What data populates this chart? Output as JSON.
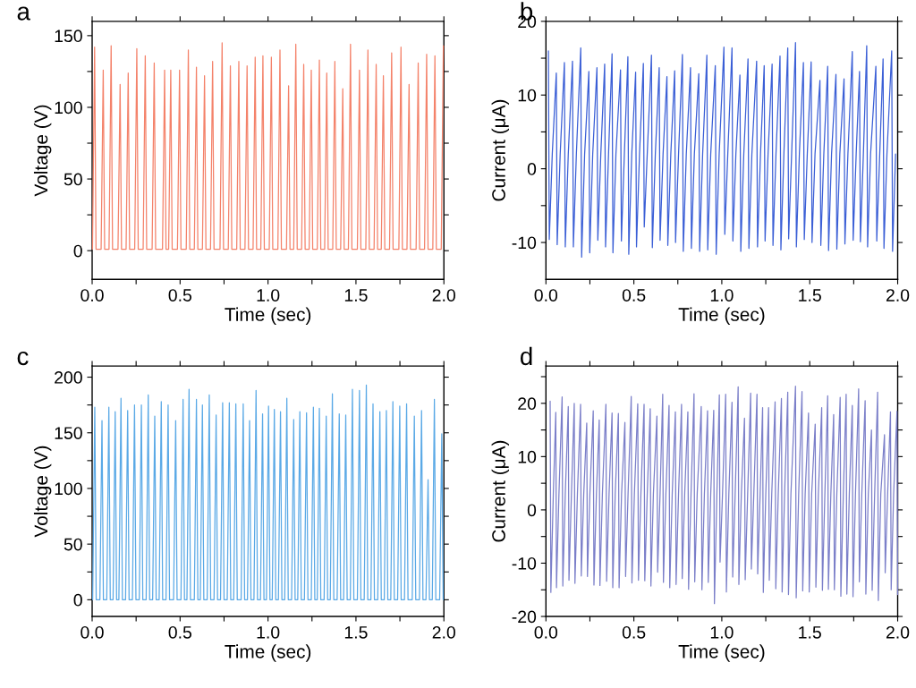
{
  "chart_data": [
    {
      "type": "line",
      "title": "a",
      "xlabel": "Time (sec)",
      "ylabel": "Voltage (V)",
      "xlim": [
        0,
        2.0
      ],
      "ylim": [
        -20,
        160
      ],
      "xticks": [
        {
          "value": 0,
          "label": "0.0"
        },
        {
          "value": 0.25,
          "label": null
        },
        {
          "value": 0.5,
          "label": "0.5"
        },
        {
          "value": 0.75,
          "label": null
        },
        {
          "value": 1.0,
          "label": "1.0"
        },
        {
          "value": 1.25,
          "label": null
        },
        {
          "value": 1.5,
          "label": "1.5"
        },
        {
          "value": 1.75,
          "label": null
        },
        {
          "value": 2.0,
          "label": "2.0"
        }
      ],
      "yticks": [
        {
          "value": 0,
          "label": "0"
        },
        {
          "value": 25,
          "label": null
        },
        {
          "value": 50,
          "label": "50"
        },
        {
          "value": 75,
          "label": null
        },
        {
          "value": 100,
          "label": "100"
        },
        {
          "value": 125,
          "label": null
        },
        {
          "value": 150,
          "label": "150"
        }
      ],
      "series": [
        {
          "color": "#f4826a",
          "x": [
            0.002,
            0.014,
            0.022,
            0.051,
            0.063,
            0.071,
            0.096,
            0.108,
            0.116,
            0.147,
            0.159,
            0.167,
            0.193,
            0.205,
            0.213,
            0.242,
            0.254,
            0.262,
            0.29,
            0.302,
            0.31,
            0.341,
            0.353,
            0.361,
            0.4,
            0.412,
            0.42,
            0.435,
            0.447,
            0.455,
            0.485,
            0.497,
            0.505,
            0.535,
            0.547,
            0.555,
            0.581,
            0.593,
            0.601,
            0.627,
            0.639,
            0.647,
            0.673,
            0.685,
            0.693,
            0.727,
            0.739,
            0.747,
            0.774,
            0.786,
            0.794,
            0.822,
            0.834,
            0.842,
            0.869,
            0.881,
            0.889,
            0.915,
            0.927,
            0.935,
            0.959,
            0.971,
            0.979,
            1.007,
            1.019,
            1.027,
            1.056,
            1.068,
            1.076,
            1.105,
            1.117,
            1.125,
            1.146,
            1.158,
            1.166,
            1.191,
            1.203,
            1.211,
            1.234,
            1.246,
            1.254,
            1.28,
            1.292,
            1.3,
            1.322,
            1.334,
            1.342,
            1.368,
            1.38,
            1.388,
            1.413,
            1.425,
            1.433,
            1.457,
            1.469,
            1.477,
            1.508,
            1.52,
            1.528,
            1.556,
            1.568,
            1.576,
            1.603,
            1.615,
            1.623,
            1.644,
            1.656,
            1.664,
            1.691,
            1.703,
            1.711,
            1.744,
            1.756,
            1.764,
            1.79,
            1.802,
            1.81,
            1.842,
            1.854,
            1.862,
            1.89,
            1.902,
            1.91,
            1.937,
            1.949,
            1.957,
            1.985,
            1.997
          ],
          "values": [
            1,
            142,
            1,
            1,
            126,
            1,
            1,
            143,
            1,
            1,
            116,
            1,
            1,
            124,
            1,
            1,
            141,
            1,
            1,
            136,
            1,
            1,
            131,
            1,
            1,
            126,
            1,
            1,
            126,
            1,
            1,
            126,
            1,
            1,
            140,
            1,
            1,
            128,
            1,
            1,
            122,
            1,
            1,
            132,
            1,
            1,
            145,
            1,
            1,
            129,
            1,
            1,
            132,
            1,
            1,
            129,
            1,
            1,
            135,
            1,
            1,
            136,
            1,
            1,
            135,
            1,
            1,
            140,
            1,
            1,
            115,
            1,
            1,
            144,
            1,
            1,
            130,
            1,
            1,
            126,
            1,
            1,
            133,
            1,
            1,
            124,
            1,
            1,
            132,
            1,
            1,
            113,
            1,
            1,
            144,
            1,
            1,
            126,
            1,
            1,
            140,
            1,
            1,
            130,
            1,
            1,
            122,
            1,
            1,
            138,
            1,
            1,
            142,
            1,
            1,
            116,
            1,
            1,
            131,
            1,
            1,
            137,
            1,
            1,
            136,
            1,
            1,
            143
          ]
        }
      ]
    },
    {
      "type": "line",
      "title": "b",
      "xlabel": "Time (sec)",
      "ylabel": "Current (μA)",
      "xlim": [
        0,
        2.0
      ],
      "ylim": [
        -15,
        20
      ],
      "xticks": [
        {
          "value": 0,
          "label": "0.0"
        },
        {
          "value": 0.25,
          "label": null
        },
        {
          "value": 0.5,
          "label": "0.5"
        },
        {
          "value": 0.75,
          "label": null
        },
        {
          "value": 1.0,
          "label": "1.0"
        },
        {
          "value": 1.25,
          "label": null
        },
        {
          "value": 1.5,
          "label": "1.5"
        },
        {
          "value": 1.75,
          "label": null
        },
        {
          "value": 2.0,
          "label": "2.0"
        }
      ],
      "yticks": [
        {
          "value": -10,
          "label": "-10"
        },
        {
          "value": -5,
          "label": null
        },
        {
          "value": 0,
          "label": "0"
        },
        {
          "value": 5,
          "label": null
        },
        {
          "value": 10,
          "label": "10"
        },
        {
          "value": 15,
          "label": null
        },
        {
          "value": 20,
          "label": "20"
        }
      ],
      "series": [
        {
          "color": "#3b5fd6",
          "x": [
            0.014,
            0.019,
            0.036,
            0.059,
            0.064,
            0.081,
            0.105,
            0.11,
            0.127,
            0.151,
            0.156,
            0.173,
            0.198,
            0.203,
            0.22,
            0.244,
            0.249,
            0.266,
            0.29,
            0.295,
            0.312,
            0.334,
            0.339,
            0.356,
            0.376,
            0.381,
            0.398,
            0.424,
            0.429,
            0.446,
            0.466,
            0.471,
            0.488,
            0.51,
            0.515,
            0.532,
            0.554,
            0.559,
            0.576,
            0.6,
            0.605,
            0.622,
            0.644,
            0.649,
            0.666,
            0.688,
            0.693,
            0.71,
            0.732,
            0.737,
            0.754,
            0.776,
            0.781,
            0.798,
            0.822,
            0.827,
            0.844,
            0.869,
            0.874,
            0.891,
            0.915,
            0.92,
            0.937,
            0.963,
            0.968,
            0.985,
            1.012,
            1.017,
            1.034,
            1.058,
            1.063,
            1.08,
            1.103,
            1.108,
            1.125,
            1.149,
            1.154,
            1.171,
            1.198,
            1.203,
            1.22,
            1.241,
            1.246,
            1.263,
            1.286,
            1.291,
            1.308,
            1.331,
            1.336,
            1.353,
            1.375,
            1.38,
            1.397,
            1.419,
            1.424,
            1.441,
            1.464,
            1.469,
            1.486,
            1.508,
            1.513,
            1.53,
            1.558,
            1.563,
            1.58,
            1.602,
            1.607,
            1.624,
            1.649,
            1.654,
            1.671,
            1.695,
            1.7,
            1.717,
            1.742,
            1.747,
            1.764,
            1.783,
            1.788,
            1.805,
            1.824,
            1.829,
            1.846,
            1.876,
            1.881,
            1.898,
            1.917,
            1.922,
            1.939,
            1.966,
            1.971,
            1.988
          ],
          "values": [
            16.0,
            -9.6,
            2,
            13.0,
            -10.3,
            2,
            14.4,
            -10.6,
            2,
            14.6,
            -10.6,
            2,
            16.4,
            -12.0,
            2,
            13.2,
            -11.4,
            2,
            13.7,
            -9.7,
            2,
            14.2,
            -10.6,
            2,
            15.6,
            -11.4,
            2,
            13.4,
            -9.8,
            2,
            15.2,
            -11.6,
            2,
            13.1,
            -10.6,
            2,
            14.3,
            -7.9,
            2,
            15.4,
            -10.7,
            2,
            13.7,
            -9.7,
            2,
            12.5,
            -10.4,
            2,
            13.3,
            -10.0,
            2,
            15.5,
            -11.2,
            2,
            13.7,
            -10.8,
            2,
            12.9,
            -11.2,
            2,
            15.4,
            -11.0,
            2,
            14.0,
            -11.6,
            2,
            16.5,
            -8.9,
            2,
            16.4,
            -9.8,
            2,
            12.7,
            -11.2,
            2,
            14.9,
            -10.8,
            2,
            14.6,
            -10.6,
            2,
            14.0,
            -9.8,
            2,
            14.2,
            -10.4,
            2,
            15.3,
            -11.0,
            2,
            16.4,
            -9.5,
            2,
            17.1,
            -10.6,
            2,
            14.4,
            -9.6,
            2,
            14.5,
            -10.0,
            2,
            12.0,
            -10.4,
            2,
            13.9,
            -11.1,
            2,
            12.8,
            -10.9,
            2,
            12.2,
            -10.2,
            2,
            15.9,
            -9.7,
            2,
            13.2,
            -9.9,
            2,
            16.7,
            -10.6,
            2,
            13.9,
            -9.8,
            2,
            14.9,
            -10.8,
            2,
            16.0,
            -11.2,
            2
          ]
        }
      ]
    },
    {
      "type": "line",
      "title": "c",
      "xlabel": "Time (sec)",
      "ylabel": "Voltage (V)",
      "xlim": [
        0,
        2.0
      ],
      "ylim": [
        -15,
        210
      ],
      "xticks": [
        {
          "value": 0,
          "label": "0.0"
        },
        {
          "value": 0.25,
          "label": null
        },
        {
          "value": 0.5,
          "label": "0.5"
        },
        {
          "value": 0.75,
          "label": null
        },
        {
          "value": 1.0,
          "label": "1.0"
        },
        {
          "value": 1.25,
          "label": null
        },
        {
          "value": 1.5,
          "label": "1.5"
        },
        {
          "value": 1.75,
          "label": null
        },
        {
          "value": 2.0,
          "label": "2.0"
        }
      ],
      "yticks": [
        {
          "value": 0,
          "label": "0"
        },
        {
          "value": 25,
          "label": null
        },
        {
          "value": 50,
          "label": "50"
        },
        {
          "value": 75,
          "label": null
        },
        {
          "value": 100,
          "label": "100"
        },
        {
          "value": 125,
          "label": null
        },
        {
          "value": 150,
          "label": "150"
        },
        {
          "value": 175,
          "label": null
        },
        {
          "value": 200,
          "label": "200"
        }
      ],
      "series": [
        {
          "color": "#5aa9e6",
          "x": [
            0.003,
            0.015,
            0.023,
            0.044,
            0.056,
            0.064,
            0.083,
            0.095,
            0.103,
            0.119,
            0.131,
            0.139,
            0.152,
            0.164,
            0.172,
            0.19,
            0.202,
            0.21,
            0.229,
            0.241,
            0.249,
            0.268,
            0.28,
            0.288,
            0.307,
            0.319,
            0.327,
            0.344,
            0.356,
            0.364,
            0.381,
            0.393,
            0.401,
            0.42,
            0.432,
            0.44,
            0.463,
            0.475,
            0.483,
            0.505,
            0.517,
            0.525,
            0.539,
            0.551,
            0.559,
            0.581,
            0.593,
            0.601,
            0.615,
            0.627,
            0.635,
            0.654,
            0.666,
            0.674,
            0.693,
            0.705,
            0.713,
            0.73,
            0.742,
            0.75,
            0.768,
            0.78,
            0.788,
            0.805,
            0.817,
            0.825,
            0.847,
            0.859,
            0.867,
            0.883,
            0.895,
            0.903,
            0.92,
            0.932,
            0.94,
            0.957,
            0.969,
            0.977,
            0.991,
            1.003,
            1.011,
            1.024,
            1.036,
            1.044,
            1.059,
            1.071,
            1.079,
            1.095,
            1.107,
            1.115,
            1.134,
            1.146,
            1.154,
            1.169,
            1.181,
            1.189,
            1.207,
            1.219,
            1.227,
            1.246,
            1.258,
            1.266,
            1.28,
            1.292,
            1.3,
            1.319,
            1.331,
            1.339,
            1.354,
            1.366,
            1.374,
            1.393,
            1.405,
            1.413,
            1.43,
            1.442,
            1.45,
            1.468,
            1.48,
            1.488,
            1.508,
            1.52,
            1.528,
            1.547,
            1.559,
            1.567,
            1.585,
            1.597,
            1.605,
            1.624,
            1.636,
            1.644,
            1.661,
            1.673,
            1.681,
            1.698,
            1.71,
            1.718,
            1.737,
            1.749,
            1.757,
            1.776,
            1.788,
            1.796,
            1.82,
            1.832,
            1.84,
            1.861,
            1.873,
            1.881,
            1.898,
            1.91,
            1.918,
            1.934,
            1.946,
            1.954,
            1.976,
            1.988,
            1.996
          ],
          "values": [
            0,
            173,
            0,
            0,
            161,
            0,
            0,
            173,
            0,
            0,
            169,
            0,
            0,
            181,
            0,
            0,
            170,
            0,
            0,
            175,
            0,
            0,
            175,
            0,
            0,
            184,
            0,
            0,
            165,
            0,
            0,
            178,
            0,
            0,
            175,
            0,
            0,
            161,
            0,
            0,
            180,
            0,
            0,
            189,
            0,
            0,
            180,
            0,
            0,
            175,
            0,
            0,
            184,
            0,
            0,
            166,
            0,
            0,
            177,
            0,
            0,
            177,
            0,
            0,
            176,
            0,
            0,
            176,
            0,
            0,
            161,
            0,
            0,
            188,
            0,
            0,
            167,
            0,
            0,
            174,
            0,
            0,
            171,
            0,
            0,
            169,
            0,
            0,
            181,
            0,
            0,
            162,
            0,
            0,
            169,
            0,
            0,
            168,
            0,
            0,
            173,
            0,
            0,
            172,
            0,
            0,
            165,
            0,
            0,
            185,
            0,
            0,
            167,
            0,
            0,
            166,
            0,
            0,
            189,
            0,
            0,
            188,
            0,
            0,
            193,
            0,
            0,
            176,
            0,
            0,
            169,
            0,
            0,
            170,
            0,
            0,
            178,
            0,
            0,
            174,
            0,
            0,
            176,
            0,
            0,
            165,
            0,
            0,
            170,
            0,
            0,
            108,
            0,
            0,
            180,
            0,
            0,
            149,
            0
          ]
        }
      ]
    },
    {
      "type": "line",
      "title": "d",
      "xlabel": "Time (sec)",
      "ylabel": "Current (μA)",
      "xlim": [
        0,
        2.0
      ],
      "ylim": [
        -20,
        27
      ],
      "xticks": [
        {
          "value": 0,
          "label": "0.0"
        },
        {
          "value": 0.25,
          "label": null
        },
        {
          "value": 0.5,
          "label": "0.5"
        },
        {
          "value": 0.75,
          "label": null
        },
        {
          "value": 1.0,
          "label": "1.0"
        },
        {
          "value": 1.25,
          "label": null
        },
        {
          "value": 1.5,
          "label": "1.5"
        },
        {
          "value": 1.75,
          "label": null
        },
        {
          "value": 2.0,
          "label": "2.0"
        }
      ],
      "yticks": [
        {
          "value": -20,
          "label": "-20"
        },
        {
          "value": -15,
          "label": null
        },
        {
          "value": -10,
          "label": "-10"
        },
        {
          "value": -5,
          "label": null
        },
        {
          "value": 0,
          "label": "0"
        },
        {
          "value": 5,
          "label": null
        },
        {
          "value": 10,
          "label": "10"
        },
        {
          "value": 15,
          "label": null
        },
        {
          "value": 20,
          "label": "20"
        },
        {
          "value": 25,
          "label": null
        }
      ],
      "series": [
        {
          "color": "#7b7fc9",
          "x": [
            0.024,
            0.028,
            0.042,
            0.056,
            0.06,
            0.074,
            0.092,
            0.096,
            0.11,
            0.127,
            0.131,
            0.145,
            0.161,
            0.165,
            0.179,
            0.197,
            0.201,
            0.215,
            0.232,
            0.236,
            0.25,
            0.269,
            0.273,
            0.287,
            0.303,
            0.307,
            0.321,
            0.341,
            0.345,
            0.359,
            0.376,
            0.38,
            0.394,
            0.412,
            0.416,
            0.43,
            0.449,
            0.453,
            0.467,
            0.485,
            0.489,
            0.503,
            0.522,
            0.526,
            0.54,
            0.558,
            0.562,
            0.576,
            0.593,
            0.597,
            0.611,
            0.631,
            0.635,
            0.649,
            0.664,
            0.668,
            0.682,
            0.7,
            0.704,
            0.718,
            0.736,
            0.74,
            0.754,
            0.771,
            0.775,
            0.789,
            0.807,
            0.811,
            0.825,
            0.842,
            0.846,
            0.86,
            0.883,
            0.887,
            0.901,
            0.919,
            0.923,
            0.937,
            0.954,
            0.958,
            0.972,
            0.986,
            0.99,
            1.004,
            1.022,
            1.026,
            1.04,
            1.058,
            1.062,
            1.076,
            1.093,
            1.097,
            1.111,
            1.129,
            1.133,
            1.147,
            1.164,
            1.168,
            1.182,
            1.2,
            1.204,
            1.218,
            1.232,
            1.236,
            1.25,
            1.266,
            1.27,
            1.284,
            1.303,
            1.307,
            1.321,
            1.339,
            1.343,
            1.357,
            1.375,
            1.379,
            1.393,
            1.419,
            1.423,
            1.437,
            1.456,
            1.46,
            1.474,
            1.493,
            1.497,
            1.511,
            1.531,
            1.535,
            1.549,
            1.568,
            1.572,
            1.586,
            1.602,
            1.606,
            1.62,
            1.636,
            1.64,
            1.654,
            1.673,
            1.677,
            1.691,
            1.707,
            1.711,
            1.725,
            1.742,
            1.746,
            1.76,
            1.778,
            1.782,
            1.796,
            1.815,
            1.819,
            1.833,
            1.851,
            1.855,
            1.869,
            1.886,
            1.89,
            1.904,
            1.925,
            1.929,
            1.943,
            1.959,
            1.963,
            1.977,
            1.996,
            2.0
          ],
          "values": [
            20.4,
            -15.5,
            3,
            18.3,
            -14.6,
            3,
            21.2,
            -14.3,
            3,
            19.4,
            -13.2,
            3,
            20.0,
            -13.8,
            3,
            19.8,
            -12.4,
            3,
            16.3,
            -12.5,
            3,
            18.6,
            -14.1,
            3,
            16.9,
            -14.2,
            3,
            19.8,
            -13.4,
            3,
            18.2,
            -14.6,
            3,
            18.1,
            -14.6,
            3,
            16.4,
            -12.5,
            3,
            21.3,
            -13.7,
            3,
            19.9,
            -13.2,
            3,
            19.8,
            -13.3,
            3,
            19.0,
            -14.3,
            3,
            17.6,
            -11.7,
            3,
            21.7,
            -13.6,
            3,
            19.6,
            -14.6,
            3,
            18.4,
            -14.0,
            3,
            19.8,
            -12.9,
            3,
            18.4,
            -14.9,
            3,
            21.8,
            -13.5,
            3,
            19.4,
            -15.0,
            3,
            18.6,
            -13.6,
            3,
            18.7,
            -17.6,
            3,
            21.6,
            -9.8,
            3,
            21.7,
            -15.4,
            3,
            20.2,
            -12.6,
            3,
            23.1,
            -14.0,
            3,
            17.2,
            -13.1,
            3,
            21.9,
            -11.1,
            3,
            21.7,
            -12.0,
            3,
            19.2,
            -15.5,
            3,
            19.2,
            -13.2,
            3,
            20.3,
            -14.8,
            3,
            20.9,
            -15.4,
            3,
            22.1,
            -15.9,
            3,
            23.2,
            -16.5,
            3,
            22.2,
            -15.2,
            3,
            18.2,
            -15.4,
            3,
            16.1,
            -14.5,
            3,
            19.2,
            -15.1,
            3,
            21.4,
            -14.9,
            3,
            17.9,
            -15.0,
            3,
            21.1,
            -16.2,
            3,
            21.7,
            -15.8,
            3,
            19.6,
            -16.3,
            3,
            22.7,
            -13.5,
            3,
            20.5,
            -15.8,
            3,
            15.0,
            -15.1,
            3,
            22.1,
            -17.0,
            3,
            14.1,
            -11.8,
            3,
            18.4,
            -15.0,
            3,
            18.5,
            -15.9
          ]
        }
      ]
    }
  ]
}
